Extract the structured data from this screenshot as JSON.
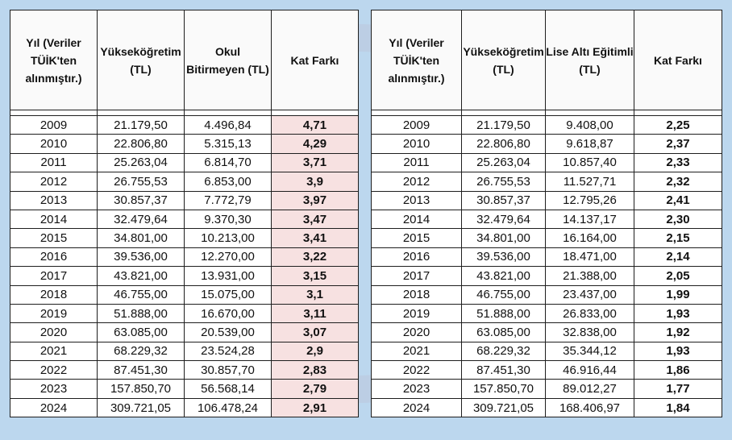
{
  "left_table": {
    "headers": [
      "Yıl (Veriler TÜİK'ten alınmıştır.)",
      "Yükseköğretim (TL)",
      "Okul Bitirmeyen (TL)",
      "Kat Farkı"
    ],
    "rows": [
      [
        "2009",
        "21.179,50",
        "4.496,84",
        "4,71"
      ],
      [
        "2010",
        "22.806,80",
        "5.315,13",
        "4,29"
      ],
      [
        "2011",
        "25.263,04",
        "6.814,70",
        "3,71"
      ],
      [
        "2012",
        "26.755,53",
        "6.853,00",
        "3,9"
      ],
      [
        "2013",
        "30.857,37",
        "7.772,79",
        "3,97"
      ],
      [
        "2014",
        "32.479,64",
        "9.370,30",
        "3,47"
      ],
      [
        "2015",
        "34.801,00",
        "10.213,00",
        "3,41"
      ],
      [
        "2016",
        "39.536,00",
        "12.270,00",
        "3,22"
      ],
      [
        "2017",
        "43.821,00",
        "13.931,00",
        "3,15"
      ],
      [
        "2018",
        "46.755,00",
        "15.075,00",
        "3,1"
      ],
      [
        "2019",
        "51.888,00",
        "16.670,00",
        "3,11"
      ],
      [
        "2020",
        "63.085,00",
        "20.539,00",
        "3,07"
      ],
      [
        "2021",
        "68.229,32",
        "23.524,28",
        "2,9"
      ],
      [
        "2022",
        "87.451,30",
        "30.857,70",
        "2,83"
      ],
      [
        "2023",
        "157.850,70",
        "56.568,14",
        "2,79"
      ],
      [
        "2024",
        "309.721,05",
        "106.478,24",
        "2,91"
      ]
    ]
  },
  "right_table": {
    "headers": [
      "Yıl (Veriler TÜİK'ten alınmıştır.)",
      "Yükseköğretim (TL)",
      "Lise Altı Eğitimli (TL)",
      "Kat Farkı"
    ],
    "rows": [
      [
        "2009",
        "21.179,50",
        "9.408,00",
        "2,25"
      ],
      [
        "2010",
        "22.806,80",
        "9.618,87",
        "2,37"
      ],
      [
        "2011",
        "25.263,04",
        "10.857,40",
        "2,33"
      ],
      [
        "2012",
        "26.755,53",
        "11.527,71",
        "2,32"
      ],
      [
        "2013",
        "30.857,37",
        "12.795,26",
        "2,41"
      ],
      [
        "2014",
        "32.479,64",
        "14.137,17",
        "2,30"
      ],
      [
        "2015",
        "34.801,00",
        "16.164,00",
        "2,15"
      ],
      [
        "2016",
        "39.536,00",
        "18.471,00",
        "2,14"
      ],
      [
        "2017",
        "43.821,00",
        "21.388,00",
        "2,05"
      ],
      [
        "2018",
        "46.755,00",
        "23.437,00",
        "1,99"
      ],
      [
        "2019",
        "51.888,00",
        "26.833,00",
        "1,93"
      ],
      [
        "2020",
        "63.085,00",
        "32.838,00",
        "1,92"
      ],
      [
        "2021",
        "68.229,32",
        "35.344,12",
        "1,93"
      ],
      [
        "2022",
        "87.451,30",
        "46.916,44",
        "1,86"
      ],
      [
        "2023",
        "157.850,70",
        "89.012,27",
        "1,77"
      ],
      [
        "2024",
        "309.721,05",
        "168.406,97",
        "1,84"
      ]
    ]
  },
  "colors": {
    "background": "#bcd7ee",
    "factor_highlight": "#f7e1e1"
  }
}
